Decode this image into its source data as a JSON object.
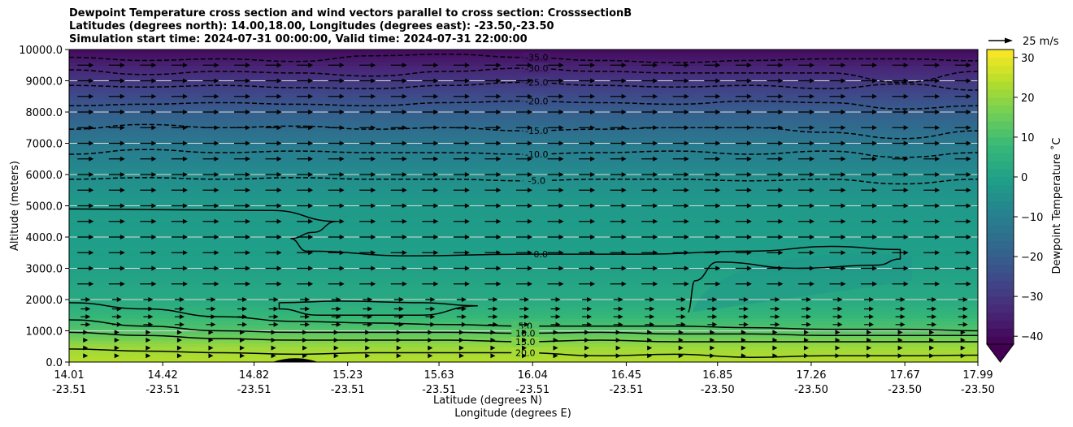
{
  "chart_data": {
    "type": "contour",
    "title_lines": [
      "Dewpoint Temperature cross section and wind vectors parallel to cross section: CrosssectionB",
      "Latitudes (degrees north): 14.00,18.00, Longitudes (degrees east): -23.50,-23.50",
      "Simulation start time: 2024-07-31 00:00:00, Valid time: 2024-07-31 22:00:00"
    ],
    "ylabel": "Altitude (meters)",
    "xlabel_lines": [
      "Latitude (degrees N)",
      "Longitude (degrees E)"
    ],
    "ylim": [
      0,
      10000
    ],
    "xlim": [
      14.01,
      17.99
    ],
    "yticks": [
      {
        "value": 0,
        "label": "0.0"
      },
      {
        "value": 1000,
        "label": "1000.0"
      },
      {
        "value": 2000,
        "label": "2000.0"
      },
      {
        "value": 3000,
        "label": "3000.0"
      },
      {
        "value": 4000,
        "label": "4000.0"
      },
      {
        "value": 5000,
        "label": "5000.0"
      },
      {
        "value": 6000,
        "label": "6000.0"
      },
      {
        "value": 7000,
        "label": "7000.0"
      },
      {
        "value": 8000,
        "label": "8000.0"
      },
      {
        "value": 9000,
        "label": "9000.0"
      },
      {
        "value": 10000,
        "label": "10000.0"
      }
    ],
    "xticks": [
      {
        "lat": 14.01,
        "lat_label": "14.01",
        "lon_label": "-23.51"
      },
      {
        "lat": 14.42,
        "lat_label": "14.42",
        "lon_label": "-23.51"
      },
      {
        "lat": 14.82,
        "lat_label": "14.82",
        "lon_label": "-23.51"
      },
      {
        "lat": 15.23,
        "lat_label": "15.23",
        "lon_label": "-23.51"
      },
      {
        "lat": 15.63,
        "lat_label": "15.63",
        "lon_label": "-23.51"
      },
      {
        "lat": 16.04,
        "lat_label": "16.04",
        "lon_label": "-23.51"
      },
      {
        "lat": 16.45,
        "lat_label": "16.45",
        "lon_label": "-23.51"
      },
      {
        "lat": 16.85,
        "lat_label": "16.85",
        "lon_label": "-23.50"
      },
      {
        "lat": 17.26,
        "lat_label": "17.26",
        "lon_label": "-23.50"
      },
      {
        "lat": 17.67,
        "lat_label": "17.67",
        "lon_label": "-23.50"
      },
      {
        "lat": 17.99,
        "lat_label": "17.99",
        "lon_label": "-23.50"
      }
    ],
    "colorbar": {
      "label": "Dewpoint Temperature ˚C",
      "range": [
        -42,
        32
      ],
      "extend": "min",
      "ticks": [
        {
          "value": 30,
          "label": "30"
        },
        {
          "value": 20,
          "label": "20"
        },
        {
          "value": 10,
          "label": "10"
        },
        {
          "value": 0,
          "label": "0"
        },
        {
          "value": -10,
          "label": "−10"
        },
        {
          "value": -20,
          "label": "−20"
        },
        {
          "value": -30,
          "label": "−30"
        },
        {
          "value": -40,
          "label": "−40"
        }
      ],
      "colormap": "viridis"
    },
    "quiver_key": {
      "label": "25 m/s",
      "speed": 25
    },
    "altitude_profile": [
      {
        "alt": 0,
        "dewpoint": 24
      },
      {
        "alt": 500,
        "dewpoint": 21
      },
      {
        "alt": 1000,
        "dewpoint": 12
      },
      {
        "alt": 1500,
        "dewpoint": 7
      },
      {
        "alt": 2000,
        "dewpoint": 3
      },
      {
        "alt": 3000,
        "dewpoint": 0
      },
      {
        "alt": 4000,
        "dewpoint": -1
      },
      {
        "alt": 5000,
        "dewpoint": -2
      },
      {
        "alt": 6000,
        "dewpoint": -6
      },
      {
        "alt": 7000,
        "dewpoint": -12
      },
      {
        "alt": 8000,
        "dewpoint": -20
      },
      {
        "alt": 9000,
        "dewpoint": -30
      },
      {
        "alt": 10000,
        "dewpoint": -40
      }
    ],
    "contours": [
      {
        "level": -35,
        "label": "-35.0",
        "style": "dashed",
        "alts": [
          9750,
          9650,
          9700,
          9620,
          9800,
          9850,
          9750,
          9650,
          9580,
          9650,
          9700,
          9700,
          9640
        ]
      },
      {
        "level": -30,
        "label": "-30.0",
        "style": "dashed",
        "alts": [
          9350,
          9200,
          9300,
          9250,
          9150,
          9300,
          9400,
          9300,
          9250,
          9250,
          9250,
          8950,
          9300
        ]
      },
      {
        "level": -25,
        "label": "-25.0",
        "style": "dashed",
        "alts": [
          8850,
          8800,
          8850,
          8780,
          8750,
          8850,
          8950,
          8850,
          8800,
          8850,
          8750,
          8900,
          8700
        ]
      },
      {
        "level": -20,
        "label": "-20.0",
        "style": "dashed",
        "alts": [
          8200,
          8250,
          8300,
          8250,
          8200,
          8300,
          8350,
          8300,
          8250,
          8350,
          8300,
          8100,
          8200
        ]
      },
      {
        "level": -15,
        "label": "-15.0",
        "style": "dashed",
        "alts": [
          7450,
          7600,
          7500,
          7550,
          7450,
          7500,
          7400,
          7450,
          7500,
          7500,
          7350,
          7150,
          7400
        ]
      },
      {
        "level": -10,
        "label": "-10.0",
        "style": "dashed",
        "alts": [
          6650,
          6800,
          6700,
          6750,
          6700,
          6700,
          6650,
          6700,
          6750,
          6650,
          6750,
          6550,
          6700
        ]
      },
      {
        "level": -5,
        "label": "-5.0",
        "style": "dashed",
        "alts": [
          5850,
          5900,
          5850,
          5900,
          5850,
          5850,
          5800,
          5850,
          5850,
          5800,
          5850,
          5700,
          5850
        ]
      },
      {
        "level": 5,
        "label": "5.0",
        "style": "solid",
        "alts": [
          1900,
          1700,
          1450,
          1300,
          1250,
          1200,
          1150,
          1150,
          1150,
          1100,
          1050,
          1050,
          1000
        ]
      },
      {
        "level": 10,
        "label": "10.0",
        "style": "solid",
        "alts": [
          1350,
          1150,
          1000,
          950,
          950,
          950,
          920,
          950,
          900,
          900,
          850,
          850,
          850
        ]
      },
      {
        "level": 15,
        "label": "15.0",
        "style": "solid",
        "alts": [
          950,
          850,
          750,
          700,
          700,
          700,
          650,
          700,
          650,
          650,
          650,
          650,
          650
        ]
      },
      {
        "level": 20,
        "label": "20.0",
        "style": "solid",
        "alts": [
          420,
          350,
          300,
          250,
          300,
          300,
          300,
          200,
          250,
          150,
          200,
          200,
          220
        ]
      }
    ],
    "zero_contour_label": "0.0",
    "dashed_5_label": "-5.0",
    "extra_labels": [
      "-5.0",
      "0.0",
      "-5.0",
      "20.0",
      "20.0",
      "-35",
      "-35"
    ],
    "wind": {
      "u_m_s": 12,
      "levels_m": [
        200,
        450,
        700,
        950,
        1200,
        1450,
        1700,
        2000,
        2500,
        3000,
        3500,
        4000,
        4500,
        5000,
        5500,
        6000,
        6500,
        7000,
        7500,
        8000,
        8500,
        9000,
        9500
      ],
      "columns": 29
    }
  }
}
